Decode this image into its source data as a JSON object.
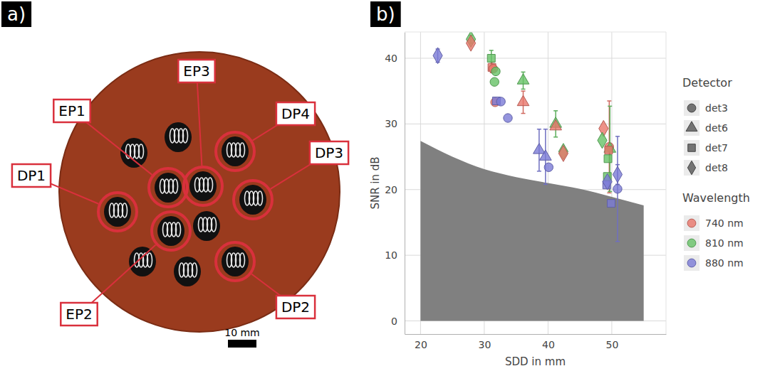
{
  "photo": {
    "panel_label": "a)",
    "labels": [
      "EP1",
      "EP3",
      "DP4",
      "DP3",
      "DP1",
      "EP2",
      "DP2"
    ],
    "scale_bar": "10 mm"
  },
  "chart_data": {
    "type": "scatter",
    "panel_label": "b)",
    "xlabel": "SDD in mm",
    "ylabel": "SNR in dB",
    "xlim": [
      17.5,
      58.5
    ],
    "ylim": [
      -2,
      44
    ],
    "xticks": [
      20,
      30,
      40,
      50
    ],
    "yticks": [
      0,
      10,
      20,
      30,
      40
    ],
    "grid": true,
    "legend": "right",
    "legend_groups": [
      {
        "title": "Detector",
        "entries": [
          {
            "name": "det3",
            "marker": "circle"
          },
          {
            "name": "det6",
            "marker": "triangle"
          },
          {
            "name": "det7",
            "marker": "square"
          },
          {
            "name": "det8",
            "marker": "diamond"
          }
        ]
      },
      {
        "title": "Wavelength",
        "entries": [
          {
            "name": "740 nm",
            "color": "#e8756a"
          },
          {
            "name": "810 nm",
            "color": "#66c266"
          },
          {
            "name": "880 nm",
            "color": "#7b7bd6"
          }
        ]
      }
    ],
    "area": {
      "x": [
        20,
        25,
        30,
        35,
        40,
        45,
        50,
        55
      ],
      "values": [
        27.4,
        25.0,
        23.1,
        21.9,
        21.0,
        20.1,
        18.9,
        17.6
      ],
      "base": 0,
      "color": "#808080"
    },
    "points": [
      {
        "x": 22.7,
        "y": 40.4,
        "error": 1.0,
        "detector": "det8",
        "wavelength": "880 nm"
      },
      {
        "x": 27.9,
        "y": 42.9,
        "error": 0.6,
        "detector": "det8",
        "wavelength": "810 nm"
      },
      {
        "x": 27.9,
        "y": 42.3,
        "detector": "det8",
        "wavelength": "740 nm"
      },
      {
        "x": 31.1,
        "y": 40.0,
        "error": 1.2,
        "detector": "det7",
        "wavelength": "810 nm"
      },
      {
        "x": 31.2,
        "y": 38.6,
        "error": 0.8,
        "detector": "det7",
        "wavelength": "740 nm"
      },
      {
        "x": 31.4,
        "y": 38.4,
        "detector": "det3",
        "wavelength": "740 nm"
      },
      {
        "x": 31.8,
        "y": 38.0,
        "detector": "det3",
        "wavelength": "810 nm"
      },
      {
        "x": 31.6,
        "y": 36.4,
        "detector": "det3",
        "wavelength": "810 nm"
      },
      {
        "x": 31.7,
        "y": 33.3,
        "detector": "det3",
        "wavelength": "740 nm"
      },
      {
        "x": 31.9,
        "y": 33.5,
        "detector": "det7",
        "wavelength": "880 nm"
      },
      {
        "x": 32.6,
        "y": 33.4,
        "detector": "det3",
        "wavelength": "880 nm"
      },
      {
        "x": 33.7,
        "y": 30.9,
        "detector": "det3",
        "wavelength": "880 nm"
      },
      {
        "x": 36.1,
        "y": 36.6,
        "error": 1.3,
        "detector": "det6",
        "wavelength": "810 nm"
      },
      {
        "x": 36.1,
        "y": 33.3,
        "error": 1.7,
        "detector": "det6",
        "wavelength": "740 nm"
      },
      {
        "x": 38.6,
        "y": 26.0,
        "error": 3.2,
        "detector": "det6",
        "wavelength": "880 nm"
      },
      {
        "x": 39.6,
        "y": 25.0,
        "error": 4.2,
        "detector": "det6",
        "wavelength": "880 nm"
      },
      {
        "x": 40.1,
        "y": 23.4,
        "detector": "det3",
        "wavelength": "880 nm"
      },
      {
        "x": 41.2,
        "y": 30.0,
        "error": 2.0,
        "detector": "det6",
        "wavelength": "810 nm"
      },
      {
        "x": 41.2,
        "y": 29.6,
        "detector": "det6",
        "wavelength": "740 nm"
      },
      {
        "x": 42.4,
        "y": 25.8,
        "detector": "det8",
        "wavelength": "810 nm"
      },
      {
        "x": 42.4,
        "y": 25.5,
        "detector": "det8",
        "wavelength": "740 nm"
      },
      {
        "x": 48.7,
        "y": 29.3,
        "detector": "det8",
        "wavelength": "740 nm"
      },
      {
        "x": 48.5,
        "y": 27.5,
        "detector": "det8",
        "wavelength": "810 nm"
      },
      {
        "x": 49.6,
        "y": 26.5,
        "error": 7.0,
        "detector": "det3",
        "wavelength": "740 nm"
      },
      {
        "x": 49.7,
        "y": 26.2,
        "error": 6.5,
        "detector": "det6",
        "wavelength": "810 nm"
      },
      {
        "x": 49.5,
        "y": 26.0,
        "detector": "det7",
        "wavelength": "740 nm"
      },
      {
        "x": 49.4,
        "y": 24.7,
        "detector": "det7",
        "wavelength": "810 nm"
      },
      {
        "x": 49.3,
        "y": 22.0,
        "detector": "det7",
        "wavelength": "810 nm"
      },
      {
        "x": 49.2,
        "y": 20.7,
        "detector": "det7",
        "wavelength": "880 nm"
      },
      {
        "x": 49.3,
        "y": 21.2,
        "detector": "det8",
        "wavelength": "880 nm"
      },
      {
        "x": 49.9,
        "y": 17.9,
        "detector": "det7",
        "wavelength": "880 nm"
      },
      {
        "x": 50.9,
        "y": 20.1,
        "error": 8.0,
        "detector": "det3",
        "wavelength": "880 nm"
      },
      {
        "x": 50.9,
        "y": 22.3,
        "error": 1.5,
        "detector": "det8",
        "wavelength": "880 nm"
      }
    ]
  }
}
